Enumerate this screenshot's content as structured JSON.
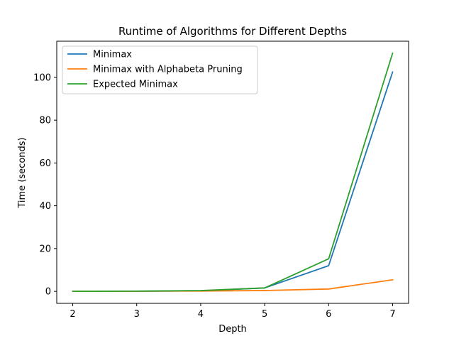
{
  "chart_data": {
    "type": "line",
    "title": "Runtime of Algorithms for Different Depths",
    "xlabel": "Depth",
    "ylabel": "Time (seconds)",
    "x": [
      2,
      3,
      4,
      5,
      6,
      7
    ],
    "xlim": [
      1.75,
      7.25
    ],
    "ylim": [
      -5.6,
      116.9
    ],
    "xticks": [
      2,
      3,
      4,
      5,
      6,
      7
    ],
    "yticks": [
      0,
      20,
      40,
      60,
      80,
      100
    ],
    "grid": false,
    "legend_position": "top-left",
    "series": [
      {
        "name": "Minimax",
        "color": "#1f77b4",
        "values": [
          0.05,
          0.08,
          0.25,
          1.6,
          12.0,
          102.5
        ]
      },
      {
        "name": "Minimax with Alphabeta Pruning",
        "color": "#ff7f0e",
        "values": [
          0.03,
          0.05,
          0.15,
          0.4,
          1.1,
          5.4
        ]
      },
      {
        "name": "Expected Minimax",
        "color": "#2ca02c",
        "values": [
          0.05,
          0.1,
          0.35,
          1.6,
          15.2,
          111.3
        ]
      }
    ]
  }
}
